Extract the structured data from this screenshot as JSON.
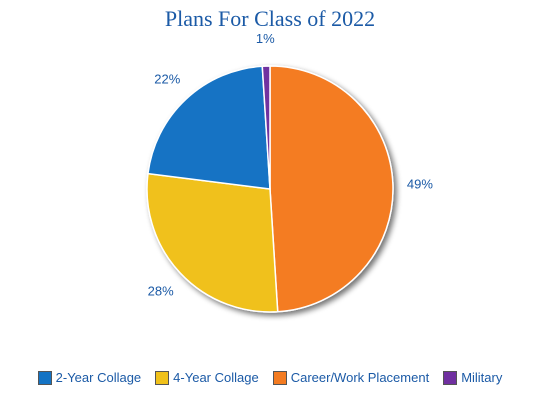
{
  "chart_data": {
    "type": "pie",
    "title": "Plans For Class of 2022",
    "legend_position": "bottom",
    "slices": [
      {
        "name": "Career/Work Placement",
        "value": 49,
        "label": "49%",
        "color": "#f47b20"
      },
      {
        "name": "4-Year Collage",
        "value": 28,
        "label": "28%",
        "color": "#f0c11a"
      },
      {
        "name": "2-Year Collage",
        "value": 22,
        "label": "22%",
        "color": "#1473c4"
      },
      {
        "name": "Military",
        "value": 1,
        "label": "1%",
        "color": "#7030a0"
      }
    ]
  },
  "legend": {
    "items": [
      {
        "label": "2-Year Collage",
        "color": "#1473c4"
      },
      {
        "label": "4-Year Collage",
        "color": "#f0c11a"
      },
      {
        "label": "Career/Work Placement",
        "color": "#f47b20"
      },
      {
        "label": "Military",
        "color": "#7030a0"
      }
    ]
  }
}
